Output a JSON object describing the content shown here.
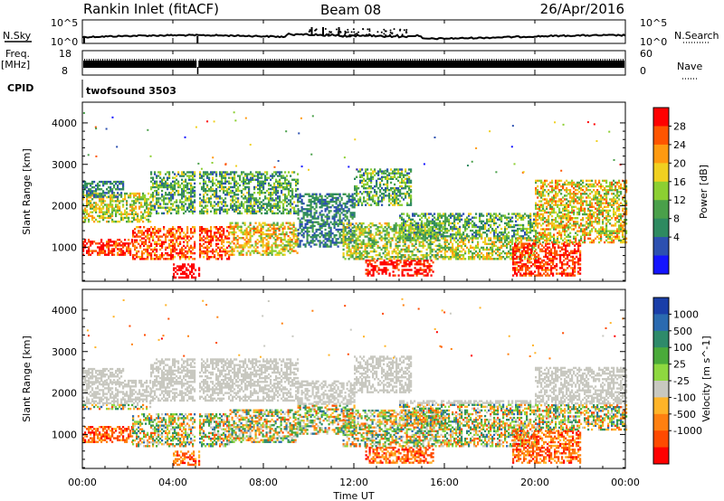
{
  "header": {
    "station": "Rankin Inlet (fitACF)",
    "beam": "Beam 08",
    "date": "26/Apr/2016"
  },
  "top_panels": {
    "nsky_label": "N.Sky",
    "nsearch_label": "N.Search",
    "noise_ticks": [
      "10^5",
      "10^0"
    ],
    "noise_right_ticks": [
      "10^5",
      "10^0"
    ],
    "freq_label_1": "Freq.",
    "freq_label_2": "[MHz]",
    "freq_ticks": [
      "18",
      "8"
    ],
    "nave_label": "Nave",
    "nave_ticks": [
      "60",
      "0"
    ],
    "cpid_label": "CPID",
    "cpid_value": "twofsound 3503"
  },
  "colors": {
    "power": [
      "#1414ff",
      "#2c50b0",
      "#2e8a60",
      "#4aa04a",
      "#8ccf32",
      "#f0d020",
      "#ff9a10",
      "#ff5500",
      "#ff0000"
    ],
    "velocity": [
      "#1a3ea8",
      "#2a6ab0",
      "#2e8a6a",
      "#4aaa3a",
      "#8ed840",
      "#c8c8c0",
      "#ffb428",
      "#ff8010",
      "#ff4a00",
      "#ff0000"
    ]
  },
  "chart_data": [
    {
      "type": "heatmap",
      "name": "power",
      "ylabel": "Slant Range [km]",
      "ylim": [
        180,
        4500
      ],
      "xlim": [
        0,
        24
      ],
      "yticks": [
        1000,
        2000,
        3000,
        4000
      ],
      "colorbar": {
        "label": "Power [dB]",
        "range": [
          0,
          32
        ],
        "ticks": [
          4,
          8,
          12,
          16,
          20,
          24,
          28
        ]
      }
    },
    {
      "type": "heatmap",
      "name": "velocity",
      "ylabel": "Slant Range [km]",
      "xlabel": "Time UT",
      "ylim": [
        180,
        4500
      ],
      "xlim": [
        0,
        24
      ],
      "yticks": [
        1000,
        2000,
        3000,
        4000
      ],
      "xticks": [
        "00:00",
        "04:00",
        "08:00",
        "12:00",
        "16:00",
        "20:00",
        "00:00"
      ],
      "colorbar": {
        "label": "Velocity [m s^-1]",
        "ticks": [
          "1000",
          "500",
          "100",
          "25",
          "-25",
          "-100",
          "-500",
          "-1000"
        ]
      }
    }
  ]
}
